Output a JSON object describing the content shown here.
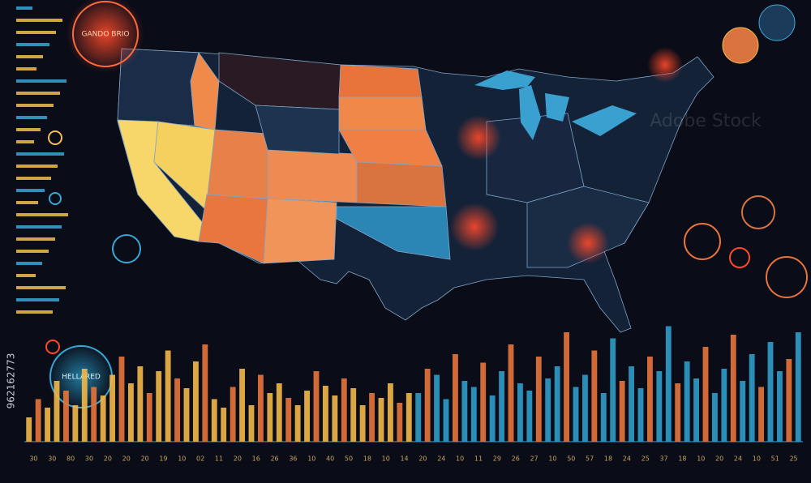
{
  "header": {
    "badge_top": "GANDO BRIO",
    "badge_bottom": "HELLARED",
    "watermark_id": "962162773",
    "watermark": "Adobe Stock"
  },
  "chart_data": {
    "type": "bar",
    "ylim": [
      0,
      100
    ],
    "series": [
      {
        "color": "#f2b84a",
        "values": [
          20,
          35,
          28,
          50,
          42,
          30,
          60,
          45,
          38,
          55,
          70,
          48,
          62,
          40,
          58,
          75,
          52,
          44,
          66,
          80,
          35,
          28,
          45,
          60,
          30,
          55,
          40,
          48,
          36,
          30,
          42,
          58,
          46,
          38,
          52,
          44,
          30,
          40,
          36,
          48,
          32,
          40
        ]
      },
      {
        "color": "#2f9cc9",
        "values": [
          40,
          60,
          55,
          35,
          72,
          50,
          45,
          65,
          38,
          58,
          80,
          48,
          42,
          70,
          52,
          62,
          90,
          45,
          55,
          75,
          40,
          85,
          50,
          62,
          44,
          70,
          58,
          95,
          48,
          66,
          52,
          78,
          40,
          60,
          88,
          50,
          72,
          45,
          82,
          58,
          68,
          90
        ]
      }
    ],
    "axis_labels": [
      "30",
      "30",
      "80",
      "30",
      "20",
      "20",
      "20",
      "19",
      "10",
      "02",
      "11",
      "20",
      "16",
      "26",
      "36",
      "10",
      "40",
      "50",
      "18",
      "10",
      "14",
      "20",
      "24",
      "10",
      "11",
      "29",
      "26",
      "27",
      "10",
      "50",
      "57",
      "18",
      "24",
      "25",
      "37",
      "18",
      "10",
      "20",
      "24",
      "10",
      "51",
      "25"
    ]
  }
}
